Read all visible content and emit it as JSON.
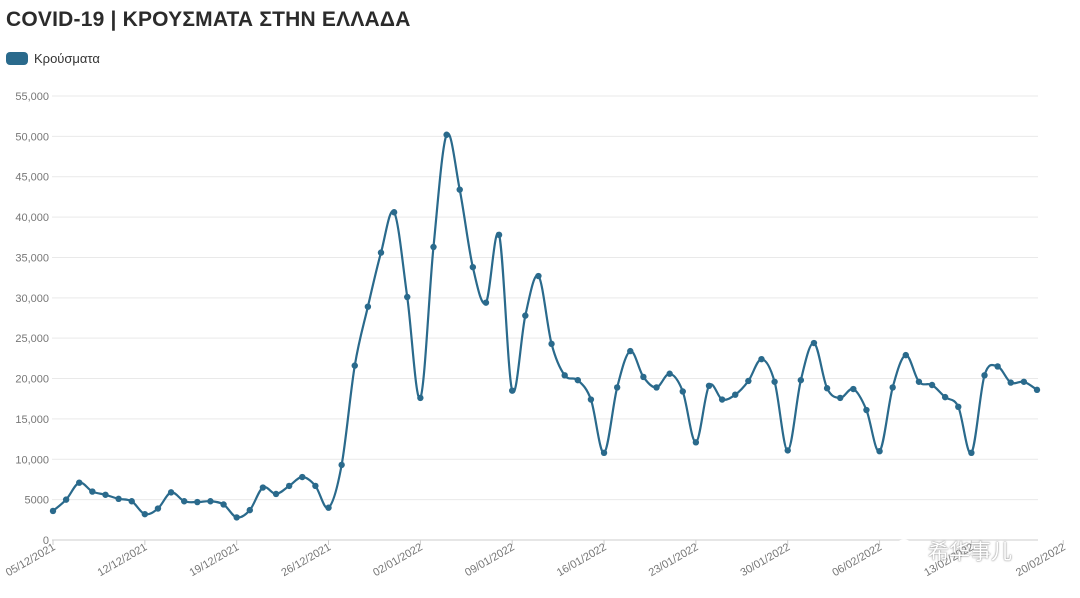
{
  "colors": {
    "series": "#2a6a8c",
    "grid": "#e9e9e9",
    "axis": "#cccccc"
  },
  "chart_data": {
    "type": "line",
    "title": "COVID-19 | ΚΡΟΥΣΜΑΤΑ ΣΤΗΝ ΕΛΛΑΔΑ",
    "legend": "top-left",
    "grid": true,
    "ylim": [
      0,
      55000
    ],
    "y_ticks": [
      0,
      5000,
      10000,
      15000,
      20000,
      25000,
      30000,
      35000,
      40000,
      45000,
      50000,
      55000
    ],
    "y_tick_labels": [
      "0",
      "5000",
      "10,000",
      "15,000",
      "20,000",
      "25,000",
      "30,000",
      "35,000",
      "40,000",
      "45,000",
      "50,000",
      "55,000"
    ],
    "x_tick_labels": [
      "05/12/2021",
      "12/12/2021",
      "19/12/2021",
      "26/12/2021",
      "02/01/2022",
      "09/01/2022",
      "16/01/2022",
      "23/01/2022",
      "30/01/2022",
      "06/02/2022",
      "13/02/2022",
      "20/02/2022"
    ],
    "series": [
      {
        "name": "Κρούσματα",
        "values": [
          3600,
          5000,
          7100,
          6000,
          5600,
          5100,
          4800,
          3200,
          3900,
          5900,
          4800,
          4700,
          4800,
          4400,
          2800,
          3700,
          6500,
          5700,
          6700,
          7800,
          6700,
          4000,
          9300,
          21600,
          28900,
          35600,
          40600,
          30100,
          17600,
          36300,
          50200,
          43400,
          33800,
          29400,
          37800,
          18500,
          27800,
          32700,
          24300,
          20400,
          19800,
          17400,
          10800,
          18900,
          23400,
          20200,
          18900,
          20600,
          18400,
          12100,
          19100,
          17400,
          18000,
          19700,
          22400,
          19600,
          11100,
          19800,
          24400,
          18800,
          17600,
          18700,
          16100,
          11000,
          18900,
          22900,
          19600,
          19200,
          17700,
          16500,
          10800,
          20400,
          21500,
          19500,
          19600,
          18600
        ]
      }
    ]
  },
  "watermark": {
    "text": "希华事儿"
  }
}
